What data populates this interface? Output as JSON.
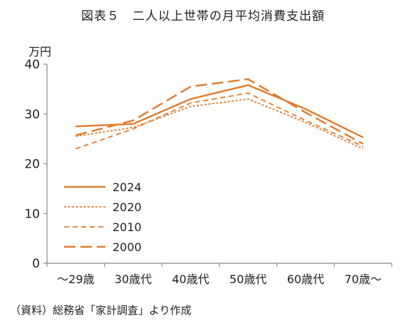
{
  "chart_data": {
    "type": "line",
    "title": "図表５　二人以上世帯の月平均消費支出額",
    "ylabel": "万円",
    "xlabel": "",
    "categories": [
      "～29歳",
      "30歳代",
      "40歳代",
      "50歳代",
      "60歳代",
      "70歳～"
    ],
    "ylim": [
      0,
      40
    ],
    "yticks": [
      0,
      10,
      20,
      30,
      40
    ],
    "grid": false,
    "legend": "left-inside",
    "series": [
      {
        "name": "2024",
        "dash": "solid",
        "values": [
          27.5,
          28.0,
          33.0,
          35.8,
          31.0,
          25.3
        ]
      },
      {
        "name": "2020",
        "dash": "dotted",
        "values": [
          25.5,
          27.3,
          31.5,
          33.0,
          28.3,
          23.0
        ]
      },
      {
        "name": "2010",
        "dash": "dashed",
        "values": [
          23.0,
          27.0,
          32.2,
          34.2,
          28.7,
          23.5
        ]
      },
      {
        "name": "2000",
        "dash": "longdash",
        "values": [
          25.7,
          28.7,
          35.5,
          37.0,
          30.3,
          24.0
        ]
      }
    ],
    "color": "#E07A2C"
  },
  "source": "（資料）総務省「家計調査」より作成"
}
